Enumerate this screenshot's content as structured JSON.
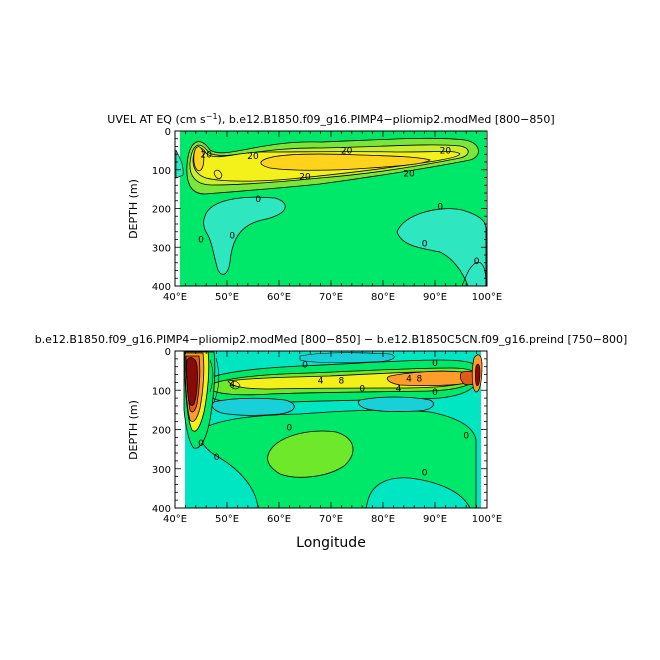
{
  "chart_data": [
    {
      "type": "contour",
      "title_main": "UVEL AT EQ (cm s",
      "title_sup": "−1",
      "title_after": "), b.e12.B1850.f09_g16.PIMP4−pliomip2.modMed [800−850]",
      "ylabel": "DEPTH (m)",
      "xlabel": "",
      "xlim": [
        40,
        100
      ],
      "ylim": [
        400,
        0
      ],
      "x_ticks": [
        "40°E",
        "50°E",
        "60°E",
        "70°E",
        "80°E",
        "90°E",
        "100°E"
      ],
      "y_ticks": [
        "0",
        "100",
        "200",
        "300",
        "400"
      ],
      "contour_labels": [
        {
          "text": "20",
          "lon": 46,
          "depth": 60
        },
        {
          "text": "20",
          "lon": 55,
          "depth": 65
        },
        {
          "text": "20",
          "lon": 73,
          "depth": 50
        },
        {
          "text": "20",
          "lon": 92,
          "depth": 50
        },
        {
          "text": "20",
          "lon": 65,
          "depth": 118
        },
        {
          "text": "20",
          "lon": 85,
          "depth": 110
        },
        {
          "text": "0",
          "lon": 56,
          "depth": 175
        },
        {
          "text": "0",
          "lon": 45,
          "depth": 280
        },
        {
          "text": "0",
          "lon": 51,
          "depth": 270
        },
        {
          "text": "0",
          "lon": 91,
          "depth": 195
        },
        {
          "text": "0",
          "lon": 88,
          "depth": 290
        },
        {
          "text": "0",
          "lon": 98,
          "depth": 335
        }
      ],
      "colors": {
        "bg": "#00e86a",
        "light_green": "#7be63a",
        "yellow_green": "#c8ee2e",
        "yellow": "#f4f01a",
        "gold": "#ffd21c",
        "cyan": "#2ee6c0"
      }
    },
    {
      "type": "contour",
      "title_main": "b.e12.B1850.f09_g16.PIMP4−pliomip2.modMed [800−850] − b.e12.B1850C5CN.f09_g16.preind [750−800]",
      "ylabel": "DEPTH (m)",
      "xlabel": "Longitude",
      "xlim": [
        40,
        100
      ],
      "ylim": [
        400,
        0
      ],
      "x_ticks": [
        "40°E",
        "50°E",
        "60°E",
        "70°E",
        "80°E",
        "90°E",
        "100°E"
      ],
      "y_ticks": [
        "0",
        "100",
        "200",
        "300",
        "400"
      ],
      "contour_labels": [
        {
          "text": "0",
          "lon": 65,
          "depth": 35
        },
        {
          "text": "0",
          "lon": 90,
          "depth": 30
        },
        {
          "text": "4",
          "lon": 51,
          "depth": 85
        },
        {
          "text": "4",
          "lon": 68,
          "depth": 75
        },
        {
          "text": "4",
          "lon": 85,
          "depth": 70
        },
        {
          "text": "4",
          "lon": 83,
          "depth": 95
        },
        {
          "text": "8",
          "lon": 72,
          "depth": 75
        },
        {
          "text": "8",
          "lon": 87,
          "depth": 70
        },
        {
          "text": "0",
          "lon": 76,
          "depth": 95
        },
        {
          "text": "0",
          "lon": 90,
          "depth": 105
        },
        {
          "text": "0",
          "lon": 62,
          "depth": 195
        },
        {
          "text": "0",
          "lon": 45,
          "depth": 235
        },
        {
          "text": "0",
          "lon": 48,
          "depth": 270
        },
        {
          "text": "0",
          "lon": 96,
          "depth": 215
        },
        {
          "text": "0",
          "lon": 88,
          "depth": 310
        }
      ],
      "colors": {
        "bg": "#00e6c2",
        "green": "#00e86a",
        "light_green": "#6ee82a",
        "yellow": "#f4ee1a",
        "orange": "#ff9d2a",
        "red_orange": "#e25a18",
        "dark_red": "#8a0a0a",
        "cyan_blue": "#1ad0d8"
      }
    }
  ]
}
